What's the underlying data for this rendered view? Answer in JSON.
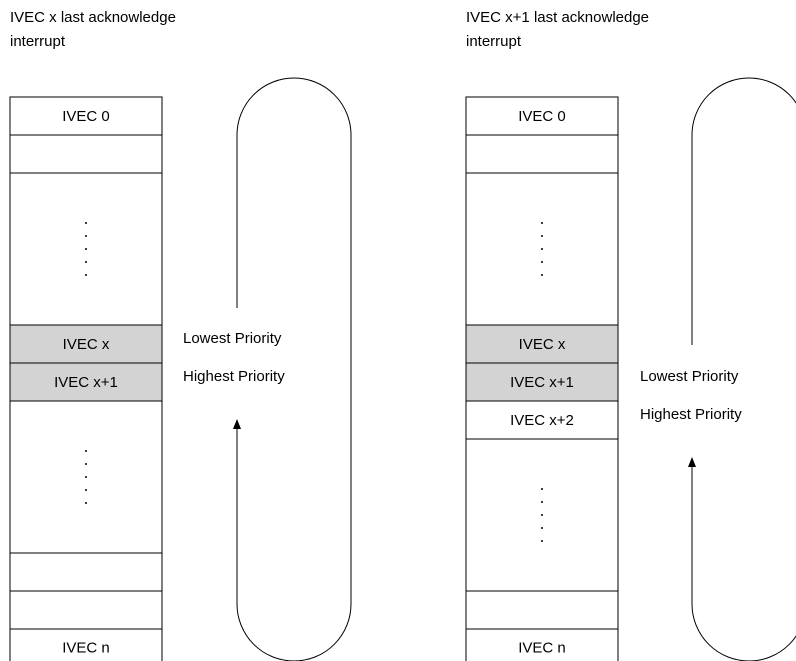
{
  "colors": {
    "highlight": "#d3d3d3",
    "line": "#000000",
    "background": "#ffffff"
  },
  "panels": [
    {
      "caption": "IVEC x last acknowledge\ninterrupt",
      "cells": [
        {
          "label": "IVEC 0",
          "highlight": false
        },
        {
          "label": "",
          "highlight": false
        },
        {
          "label": "",
          "highlight": false,
          "ellipsis": true
        },
        {
          "label": "IVEC x",
          "highlight": true
        },
        {
          "label": "IVEC x+1",
          "highlight": true
        },
        {
          "label": "",
          "highlight": false,
          "ellipsis": true
        },
        {
          "label": "",
          "highlight": false
        },
        {
          "label": "",
          "highlight": false
        },
        {
          "label": "IVEC n",
          "highlight": false
        }
      ],
      "lowest_label": "Lowest Priority",
      "highest_label": "Highest Priority"
    },
    {
      "caption": "IVEC x+1 last acknowledge\ninterrupt",
      "cells": [
        {
          "label": "IVEC 0",
          "highlight": false
        },
        {
          "label": "",
          "highlight": false
        },
        {
          "label": "",
          "highlight": false,
          "ellipsis": true
        },
        {
          "label": "IVEC x",
          "highlight": true
        },
        {
          "label": "IVEC x+1",
          "highlight": true
        },
        {
          "label": "IVEC x+2",
          "highlight": false
        },
        {
          "label": "",
          "highlight": false,
          "ellipsis": true
        },
        {
          "label": "",
          "highlight": false
        },
        {
          "label": "IVEC n",
          "highlight": false
        }
      ],
      "lowest_label": "Lowest Priority",
      "highest_label": "Highest Priority"
    }
  ]
}
